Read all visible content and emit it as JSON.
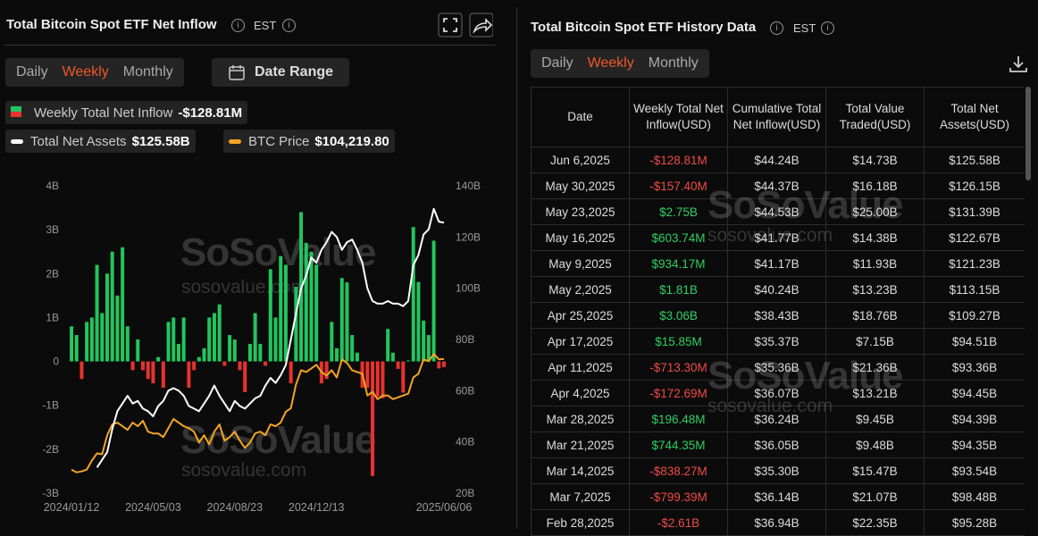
{
  "left_panel": {
    "title": "Total Bitcoin Spot ETF Net Inflow",
    "timezone": "EST",
    "tabs": [
      "Daily",
      "Weekly",
      "Monthly"
    ],
    "active_tab": 1,
    "date_range": "Date Range"
  },
  "chart_data": {
    "type": "bar-line",
    "categories": [
      "2024/01/12",
      null,
      null,
      null,
      null,
      null,
      null,
      null,
      null,
      null,
      null,
      null,
      null,
      null,
      null,
      null,
      "2024/05/03",
      null,
      null,
      null,
      null,
      null,
      null,
      null,
      null,
      null,
      null,
      null,
      null,
      null,
      null,
      null,
      "2024/08/23",
      null,
      null,
      null,
      null,
      null,
      null,
      null,
      null,
      null,
      null,
      null,
      null,
      null,
      null,
      null,
      "2024/12/13",
      null,
      null,
      null,
      null,
      null,
      null,
      null,
      null,
      null,
      null,
      null,
      null,
      null,
      null,
      null,
      null,
      null,
      null,
      null,
      null,
      null,
      null,
      null,
      null,
      "2025/06/06"
    ],
    "series": [
      {
        "name": "Weekly Total Net Inflow",
        "legend_value": "-$128.81M",
        "kind": "bar",
        "color": "#22c55e",
        "negative_color": "#e5332d",
        "axis": "y",
        "values": [
          0.8,
          0.6,
          -0.4,
          0.9,
          1.0,
          2.2,
          1.1,
          2.0,
          2.5,
          1.5,
          2.6,
          0.8,
          -0.2,
          0.5,
          -0.2,
          -0.4,
          -0.5,
          0.1,
          -0.6,
          0.9,
          1.0,
          0.4,
          1.0,
          -0.6,
          -0.2,
          0.1,
          0.3,
          1.0,
          1.1,
          1.3,
          -0.1,
          0.6,
          0.5,
          -0.2,
          -0.7,
          0.4,
          1.1,
          0.4,
          -0.1,
          2.1,
          1.0,
          2.4,
          2.2,
          -0.5,
          1.7,
          3.4,
          2.7,
          2.5,
          2.2,
          -0.5,
          -0.4,
          0.9,
          0.3,
          1.9,
          1.8,
          0.6,
          0.2,
          -0.6,
          -0.6,
          -2.61,
          -0.8,
          -0.84,
          0.74,
          0.2,
          -0.17,
          -0.71,
          0.02,
          3.06,
          1.81,
          0.93,
          0.6,
          2.75,
          -0.16,
          -0.13
        ]
      },
      {
        "name": "Total Net Assets",
        "legend_value": "$125.58B",
        "kind": "line",
        "color": "#ffffff",
        "axis": "y2",
        "values": [
          null,
          null,
          null,
          null,
          null,
          30,
          33,
          36,
          45,
          52,
          55,
          58,
          55,
          56,
          53,
          52,
          50,
          54,
          56,
          60,
          61,
          60,
          58,
          54,
          53,
          52,
          55,
          58,
          62,
          58,
          55,
          52,
          56,
          54,
          53,
          55,
          57,
          58,
          62,
          65,
          63,
          66,
          70,
          80,
          90,
          100,
          105,
          112,
          110,
          115,
          118,
          122,
          120,
          115,
          118,
          119,
          115,
          110,
          100,
          95,
          94,
          94,
          95,
          94,
          94,
          93,
          95,
          109,
          113,
          121,
          123,
          131,
          126,
          125.58
        ]
      },
      {
        "name": "BTC Price",
        "legend_value": "$104,219.80",
        "kind": "line",
        "color": "#f5a524",
        "axis": "y3",
        "values": [
          43000,
          41500,
          42000,
          43000,
          48000,
          52000,
          51500,
          62000,
          68000,
          69000,
          67000,
          65000,
          69000,
          67000,
          70000,
          64000,
          63000,
          63000,
          61000,
          66000,
          71000,
          69000,
          67000,
          66000,
          64000,
          58000,
          62000,
          57000,
          64000,
          68000,
          59000,
          61000,
          64000,
          59000,
          55000,
          58000,
          63000,
          64000,
          62000,
          68000,
          67000,
          69000,
          75000,
          77000,
          90000,
          98000,
          97000,
          99000,
          101000,
          97000,
          95000,
          98000,
          94000,
          104000,
          102000,
          98000,
          97000,
          96000,
          84000,
          86000,
          82000,
          84000,
          84000,
          82000,
          83000,
          84000,
          85000,
          94000,
          96000,
          104000,
          103000,
          107000,
          104000,
          104219.8
        ]
      }
    ],
    "ylim": [
      -3,
      4
    ],
    "yticks": [
      {
        "value": 4,
        "label": "4B"
      },
      {
        "value": 3,
        "label": "3B"
      },
      {
        "value": 2,
        "label": "2B"
      },
      {
        "value": 1,
        "label": "1B"
      },
      0,
      {
        "value": -1,
        "label": "-1B"
      },
      {
        "value": -2,
        "label": "-2B"
      },
      {
        "value": -3,
        "label": "-3B"
      }
    ],
    "y2lim": [
      20,
      140
    ],
    "y2ticks": [
      {
        "value": 140,
        "label": "140B"
      },
      {
        "value": 120,
        "label": "120B"
      },
      {
        "value": 100,
        "label": "100B"
      },
      {
        "value": 80,
        "label": "80B"
      },
      {
        "value": 60,
        "label": "60B"
      },
      {
        "value": 40,
        "label": "40B"
      },
      {
        "value": 20,
        "label": "20B"
      }
    ],
    "y3lim": [
      30000,
      200000
    ],
    "grid": false
  },
  "right_panel": {
    "title": "Total Bitcoin Spot ETF History Data",
    "timezone": "EST",
    "tabs": [
      "Daily",
      "Weekly",
      "Monthly"
    ],
    "active_tab": 1,
    "table": {
      "columns": [
        "Date",
        "Weekly Total Net Inflow(USD)",
        "Cumulative Total Net Inflow(USD)",
        "Total Value Traded(USD)",
        "Total Net Assets(USD)"
      ],
      "rows": [
        [
          "Jun 6,2025",
          "-$128.81M",
          "$44.24B",
          "$14.73B",
          "$125.58B"
        ],
        [
          "May 30,2025",
          "-$157.40M",
          "$44.37B",
          "$16.18B",
          "$126.15B"
        ],
        [
          "May 23,2025",
          "$2.75B",
          "$44.53B",
          "$25.00B",
          "$131.39B"
        ],
        [
          "May 16,2025",
          "$603.74M",
          "$41.77B",
          "$14.38B",
          "$122.67B"
        ],
        [
          "May 9,2025",
          "$934.17M",
          "$41.17B",
          "$11.93B",
          "$121.23B"
        ],
        [
          "May 2,2025",
          "$1.81B",
          "$40.24B",
          "$13.23B",
          "$113.15B"
        ],
        [
          "Apr 25,2025",
          "$3.06B",
          "$38.43B",
          "$18.76B",
          "$109.27B"
        ],
        [
          "Apr 17,2025",
          "$15.85M",
          "$35.37B",
          "$7.15B",
          "$94.51B"
        ],
        [
          "Apr 11,2025",
          "-$713.30M",
          "$35.36B",
          "$21.36B",
          "$93.36B"
        ],
        [
          "Apr 4,2025",
          "-$172.69M",
          "$36.07B",
          "$13.21B",
          "$94.45B"
        ],
        [
          "Mar 28,2025",
          "$196.48M",
          "$36.24B",
          "$9.45B",
          "$94.39B"
        ],
        [
          "Mar 21,2025",
          "$744.35M",
          "$36.05B",
          "$9.48B",
          "$94.35B"
        ],
        [
          "Mar 14,2025",
          "-$838.27M",
          "$35.30B",
          "$15.47B",
          "$93.54B"
        ],
        [
          "Mar 7,2025",
          "-$799.39M",
          "$36.14B",
          "$21.07B",
          "$98.48B"
        ],
        [
          "Feb 28,2025",
          "-$2.61B",
          "$36.94B",
          "$22.35B",
          "$95.28B"
        ]
      ]
    }
  },
  "watermark": "SoSoValue",
  "watermark_url": "sosovalue.com"
}
